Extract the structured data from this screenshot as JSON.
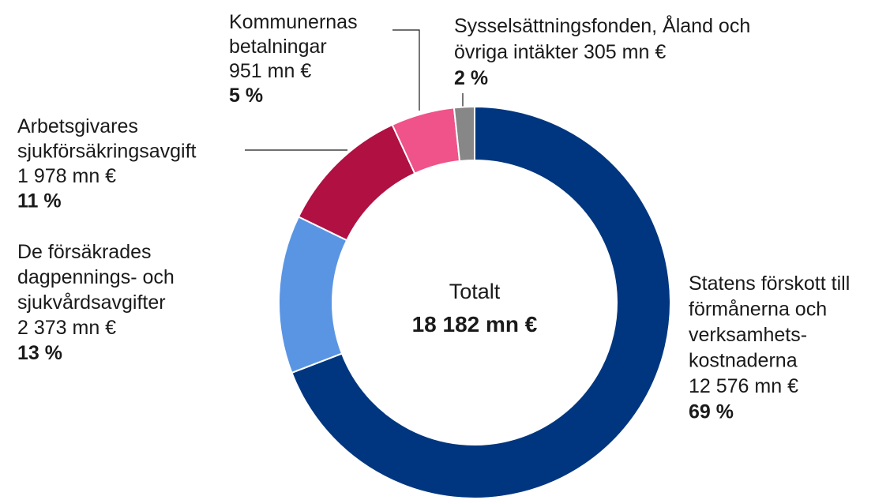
{
  "chart_data": {
    "type": "donut",
    "categories": [
      [
        "Statens förskott till",
        "förmånerna och",
        "verksamhets-",
        "kostnaderna"
      ],
      [
        "De försäkrades",
        "dagpennings- och",
        "sjukvårdsavgifter"
      ],
      [
        "Arbetsgivares",
        "sjukförsäkringsavgift"
      ],
      [
        "Kommunernas",
        "betalningar"
      ],
      [
        "Sysselsättningsfonden, Åland och",
        "övriga intäkter"
      ]
    ],
    "values": [
      12576,
      2373,
      1978,
      951,
      305
    ],
    "value_labels": [
      "12 576 mn €",
      "2 373 mn €",
      "1 978 mn €",
      "951 mn €",
      "305 mn €"
    ],
    "percent_labels": [
      "69 %",
      "13 %",
      "11 %",
      "5 %",
      "2 %"
    ],
    "colors": [
      "#00367f",
      "#5a95e4",
      "#b11043",
      "#f0528a",
      "#878787"
    ],
    "center_label": "Totalt",
    "total": 18182,
    "total_label": "18 182 mn €"
  }
}
